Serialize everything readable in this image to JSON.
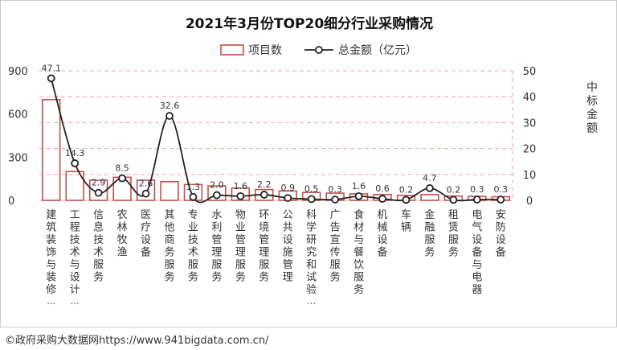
{
  "source_text": "©政府采购大数据网https://www.941bigdata.com.cn/",
  "colors": {
    "bar": "#c0504d",
    "line": "#222222",
    "grid": "#f2a0a0",
    "text": "#333333"
  },
  "chart_data": {
    "type": "bar",
    "title": "2021年3月份TOP20细分行业采购情况",
    "legend_position": "top-center",
    "categories": [
      "建筑装饰与装修…",
      "工程技术与设计…",
      "信息技术服务",
      "农林牧渔",
      "医疗设备",
      "其他商务服务",
      "专业技术服务",
      "水利管理服务",
      "物业管理服务",
      "环境管理服务",
      "公共设施管理",
      "科学研究和试验…",
      "广告宣传服务",
      "食材与餐饮服务",
      "机械设备",
      "车辆",
      "金融服务",
      "租赁服务",
      "电气设备与电器",
      "安防设备"
    ],
    "series": [
      {
        "name": "项目数",
        "type": "bar",
        "axis": "left",
        "values": [
          700,
          200,
          140,
          160,
          140,
          130,
          110,
          100,
          85,
          75,
          65,
          55,
          50,
          45,
          40,
          35,
          40,
          30,
          28,
          25
        ]
      },
      {
        "name": "总金额（亿元）",
        "type": "line",
        "axis": "right",
        "values": [
          47.1,
          14.3,
          2.9,
          8.5,
          2.6,
          32.6,
          1.3,
          2.0,
          1.6,
          2.2,
          0.9,
          0.5,
          0.3,
          1.6,
          0.6,
          0.2,
          4.7,
          0.2,
          0.3,
          0.3
        ]
      }
    ],
    "data_labels": [
      "47.1",
      "14.3",
      "2.9",
      "8.5",
      "2.6",
      "32.6",
      "1.3",
      "2.0",
      "1.6",
      "2.2",
      "0.9",
      "0.5",
      "0.3",
      "1.6",
      "0.6",
      "0.2",
      "4.7",
      "0.2",
      "0.3",
      "0.3"
    ],
    "y_left": {
      "min": 0,
      "max": 900,
      "ticks": [
        "0",
        "300",
        "600",
        "900"
      ]
    },
    "y_right": {
      "min": 0,
      "max": 50,
      "ticks": [
        "0",
        "10",
        "20",
        "30",
        "40",
        "50"
      ],
      "label": "中标金额"
    },
    "grid": true
  }
}
